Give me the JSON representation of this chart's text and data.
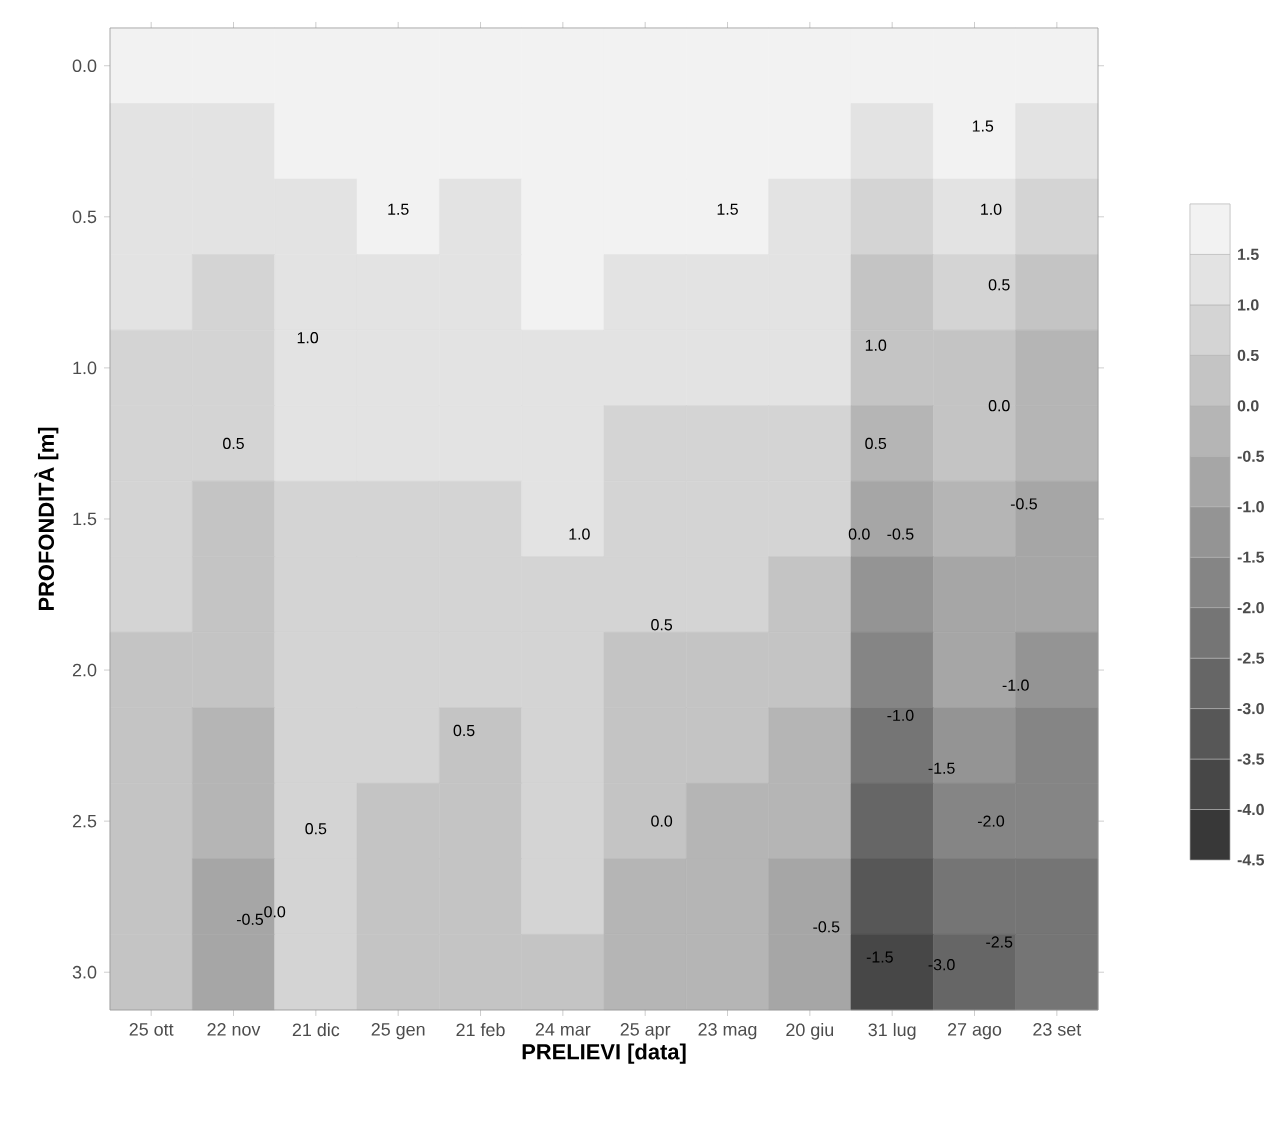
{
  "chart_data": {
    "type": "heatmap",
    "xlabel": "PRELIEVI [data]",
    "ylabel": "PROFONDITÀ [m]",
    "categories": [
      "25 ott",
      "22 nov",
      "21 dic",
      "25 gen",
      "21 feb",
      "24 mar",
      "25 apr",
      "23 mag",
      "20 giu",
      "31 lug",
      "27 ago",
      "23 set"
    ],
    "y_categories": [
      "0.0",
      null,
      "0.5",
      null,
      "1.0",
      null,
      "1.5",
      null,
      "2.0",
      null,
      "2.5",
      null,
      "3.0"
    ],
    "cells": [
      [
        1.6,
        1.5,
        1.8,
        1.8,
        1.8,
        1.9,
        1.8,
        1.8,
        1.8,
        1.6,
        1.8,
        1.6
      ],
      [
        1.4,
        1.2,
        1.6,
        1.7,
        1.6,
        1.7,
        1.7,
        1.7,
        1.6,
        1.4,
        1.5,
        1.2
      ],
      [
        1.2,
        1.0,
        1.4,
        1.5,
        1.4,
        1.6,
        1.5,
        1.5,
        1.4,
        0.7,
        1.2,
        0.7
      ],
      [
        1.0,
        0.9,
        1.3,
        1.3,
        1.3,
        1.5,
        1.3,
        1.3,
        1.2,
        0.3,
        0.8,
        0.1
      ],
      [
        0.9,
        0.7,
        1.1,
        1.2,
        1.2,
        1.3,
        1.0,
        1.0,
        1.0,
        0.0,
        0.4,
        -0.1
      ],
      [
        0.8,
        0.5,
        1.0,
        1.0,
        1.0,
        1.2,
        0.9,
        0.8,
        0.8,
        -0.4,
        0.1,
        -0.4
      ],
      [
        0.6,
        0.4,
        0.9,
        0.9,
        0.9,
        1.0,
        0.7,
        0.7,
        0.6,
        -0.8,
        -0.3,
        -0.6
      ],
      [
        0.5,
        0.2,
        0.8,
        0.7,
        0.7,
        0.9,
        0.5,
        0.5,
        0.3,
        -1.2,
        -0.6,
        -0.8
      ],
      [
        0.4,
        0.0,
        0.7,
        0.6,
        0.6,
        0.8,
        0.4,
        0.3,
        0.1,
        -1.6,
        -0.9,
        -1.2
      ],
      [
        0.3,
        -0.2,
        0.7,
        0.5,
        0.4,
        0.7,
        0.2,
        0.1,
        -0.1,
        -2.1,
        -1.3,
        -1.7
      ],
      [
        0.2,
        -0.4,
        0.6,
        0.4,
        0.3,
        0.6,
        0.0,
        -0.1,
        -0.5,
        -2.6,
        -1.8,
        -2.0
      ],
      [
        0.1,
        -0.6,
        0.5,
        0.4,
        0.3,
        0.5,
        -0.1,
        -0.3,
        -0.8,
        -3.2,
        -2.4,
        -2.2
      ],
      [
        0.0,
        -0.7,
        0.5,
        0.3,
        0.2,
        0.4,
        -0.2,
        -0.5,
        -1.0,
        -3.7,
        -3.0,
        -2.3
      ]
    ],
    "clim": [
      -4.5,
      2.0
    ],
    "cticks": [
      -4.5,
      {
        "value": -4,
        "label": "-4.0"
      },
      -3.5,
      {
        "value": -3,
        "label": "-3.0"
      },
      -2.5,
      {
        "value": -2,
        "label": "-2.0"
      },
      -1.5,
      {
        "value": -1,
        "label": "-1.0"
      },
      -0.5,
      {
        "value": 0,
        "label": "0.0"
      },
      0.5,
      {
        "value": 1,
        "label": "1.0"
      },
      1.5
    ],
    "annotations": [
      "1.5",
      "1.5",
      "1.5",
      "1.0",
      "1.0",
      "1.0",
      "1.0",
      "0.5",
      "0.5",
      "0.5",
      "0.5",
      "0.5",
      "0.5",
      "0.0",
      "0.0",
      "0.0",
      "0.0",
      "-0.5",
      "-0.5",
      "-0.5",
      "-0.5",
      "-1.0",
      "-1.0",
      "-1.5",
      "-1.5",
      "-2.0",
      "-2.5",
      "-3.0"
    ]
  }
}
